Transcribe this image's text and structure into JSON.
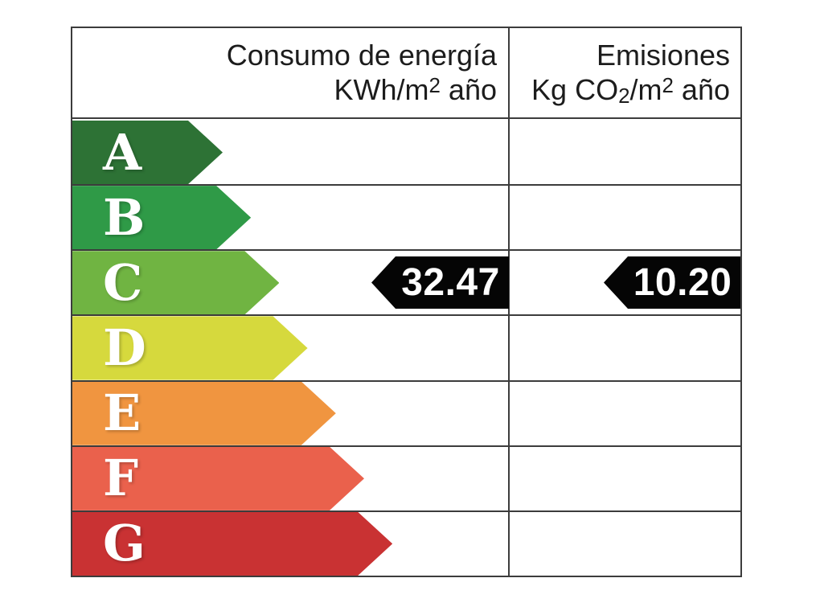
{
  "header": {
    "consumption": {
      "line1": "Consumo de energía",
      "unit_prefix": "KWh/m",
      "unit_sup": "2",
      "unit_suffix": " año"
    },
    "emissions": {
      "line1": "Emisiones",
      "unit_prefix": "Kg CO",
      "unit_sub": "2",
      "unit_mid": "/m",
      "unit_sup": "2",
      "unit_suffix": " año"
    }
  },
  "bands": [
    {
      "letter": "A",
      "color": "#2d7235"
    },
    {
      "letter": "B",
      "color": "#2f9a47"
    },
    {
      "letter": "C",
      "color": "#70b442"
    },
    {
      "letter": "D",
      "color": "#d6d93d"
    },
    {
      "letter": "E",
      "color": "#f09540"
    },
    {
      "letter": "F",
      "color": "#ea614c"
    },
    {
      "letter": "G",
      "color": "#c93233"
    }
  ],
  "ratings": {
    "rated_band": "C",
    "consumption_value": "32.47",
    "emissions_value": "10.20",
    "marker_color": "#050505",
    "marker_text_color": "#ffffff"
  },
  "border_color": "#3c3c3c",
  "chart_data": {
    "type": "table",
    "title": "Etiqueta de calificación energética (energy performance certificate scale)",
    "columns": [
      "Consumo de energía KWh/m2 año",
      "Emisiones Kg CO2/m2 año"
    ],
    "bands": [
      "A",
      "B",
      "C",
      "D",
      "E",
      "F",
      "G"
    ],
    "band_colors": [
      "#2d7235",
      "#2f9a47",
      "#70b442",
      "#d6d93d",
      "#f09540",
      "#ea614c",
      "#c93233"
    ],
    "rated_band": "C",
    "values": {
      "consumo_de_energia_kwh_m2_ano": 32.47,
      "emisiones_kg_co2_m2_ano": 10.2
    }
  }
}
